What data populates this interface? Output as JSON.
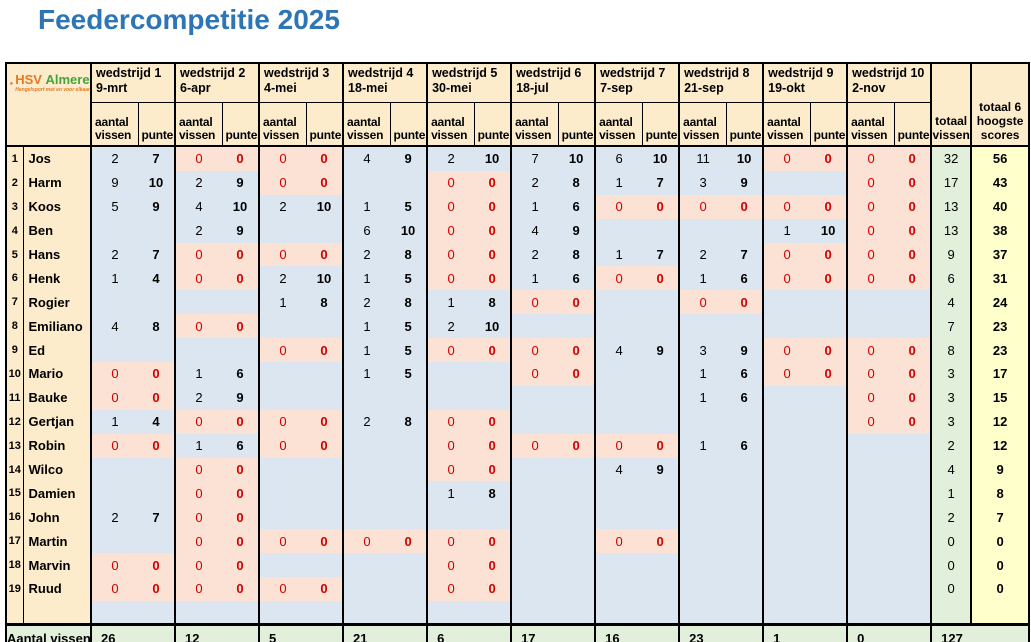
{
  "title": "Feedercompetitie 2025",
  "logo": {
    "icon": "fish-icon",
    "name_part1": "HSV",
    "name_part2": "Almere",
    "tagline": "Hengelsport met en voor elkaar"
  },
  "columns": {
    "sub_fish": "aantal vissen",
    "sub_points": "punten",
    "total_fish": "totaal vissen",
    "top6": "totaal 6 hoogste scores",
    "matches": [
      {
        "label": "wedstrijd 1",
        "date": "9-mrt"
      },
      {
        "label": "wedstrijd 2",
        "date": "6-apr"
      },
      {
        "label": "wedstrijd 3",
        "date": "4-mei"
      },
      {
        "label": "wedstrijd 4",
        "date": "18-mei"
      },
      {
        "label": "wedstrijd 5",
        "date": "30-mei"
      },
      {
        "label": "wedstrijd 6",
        "date": "18-jul"
      },
      {
        "label": "wedstrijd 7",
        "date": "7-sep"
      },
      {
        "label": "wedstrijd 8",
        "date": "21-sep"
      },
      {
        "label": "wedstrijd 9",
        "date": "19-okt"
      },
      {
        "label": "wedstrijd 10",
        "date": "2-nov"
      }
    ]
  },
  "players": [
    {
      "rank": 1,
      "name": "Jos",
      "results": [
        [
          2,
          7
        ],
        [
          0,
          0
        ],
        [
          0,
          0
        ],
        [
          4,
          9
        ],
        [
          2,
          10
        ],
        [
          7,
          10
        ],
        [
          6,
          10
        ],
        [
          11,
          10
        ],
        [
          0,
          0
        ],
        [
          0,
          0
        ]
      ],
      "total_fish": 32,
      "top6_score": 56
    },
    {
      "rank": 2,
      "name": "Harm",
      "results": [
        [
          9,
          10
        ],
        [
          2,
          9
        ],
        [
          0,
          0
        ],
        null,
        [
          0,
          0
        ],
        [
          2,
          8
        ],
        [
          1,
          7
        ],
        [
          3,
          9
        ],
        null,
        [
          0,
          0
        ]
      ],
      "total_fish": 17,
      "top6_score": 43
    },
    {
      "rank": 3,
      "name": "Koos",
      "results": [
        [
          5,
          9
        ],
        [
          4,
          10
        ],
        [
          2,
          10
        ],
        [
          1,
          5
        ],
        [
          0,
          0
        ],
        [
          1,
          6
        ],
        [
          0,
          0
        ],
        [
          0,
          0
        ],
        [
          0,
          0
        ],
        [
          0,
          0
        ]
      ],
      "total_fish": 13,
      "top6_score": 40
    },
    {
      "rank": 4,
      "name": "Ben",
      "results": [
        null,
        [
          2,
          9
        ],
        null,
        [
          6,
          10
        ],
        [
          0,
          0
        ],
        [
          4,
          9
        ],
        null,
        null,
        [
          1,
          10
        ],
        [
          0,
          0
        ]
      ],
      "total_fish": 13,
      "top6_score": 38
    },
    {
      "rank": 5,
      "name": "Hans",
      "results": [
        [
          2,
          7
        ],
        [
          0,
          0
        ],
        [
          0,
          0
        ],
        [
          2,
          8
        ],
        [
          0,
          0
        ],
        [
          2,
          8
        ],
        [
          1,
          7
        ],
        [
          2,
          7
        ],
        [
          0,
          0
        ],
        [
          0,
          0
        ]
      ],
      "total_fish": 9,
      "top6_score": 37
    },
    {
      "rank": 6,
      "name": "Henk",
      "results": [
        [
          1,
          4
        ],
        [
          0,
          0
        ],
        [
          2,
          10
        ],
        [
          1,
          5
        ],
        [
          0,
          0
        ],
        [
          1,
          6
        ],
        [
          0,
          0
        ],
        [
          1,
          6
        ],
        [
          0,
          0
        ],
        [
          0,
          0
        ]
      ],
      "total_fish": 6,
      "top6_score": 31
    },
    {
      "rank": 7,
      "name": "Rogier",
      "results": [
        null,
        null,
        [
          1,
          8
        ],
        [
          2,
          8
        ],
        [
          1,
          8
        ],
        [
          0,
          0
        ],
        null,
        [
          0,
          0
        ],
        null,
        null
      ],
      "total_fish": 4,
      "top6_score": 24
    },
    {
      "rank": 8,
      "name": "Emiliano",
      "results": [
        [
          4,
          8
        ],
        [
          0,
          0
        ],
        null,
        [
          1,
          5
        ],
        [
          2,
          10
        ],
        null,
        null,
        null,
        null,
        null
      ],
      "total_fish": 7,
      "top6_score": 23
    },
    {
      "rank": 9,
      "name": "Ed",
      "results": [
        null,
        null,
        [
          0,
          0
        ],
        [
          1,
          5
        ],
        [
          0,
          0
        ],
        [
          0,
          0
        ],
        [
          4,
          9
        ],
        [
          3,
          9
        ],
        [
          0,
          0
        ],
        [
          0,
          0
        ]
      ],
      "total_fish": 8,
      "top6_score": 23
    },
    {
      "rank": 10,
      "name": "Mario",
      "results": [
        [
          0,
          0
        ],
        [
          1,
          6
        ],
        null,
        [
          1,
          5
        ],
        null,
        [
          0,
          0
        ],
        null,
        [
          1,
          6
        ],
        [
          0,
          0
        ],
        [
          0,
          0
        ]
      ],
      "total_fish": 3,
      "top6_score": 17
    },
    {
      "rank": 11,
      "name": "Bauke",
      "results": [
        [
          0,
          0
        ],
        [
          2,
          9
        ],
        null,
        null,
        null,
        null,
        null,
        [
          1,
          6
        ],
        null,
        [
          0,
          0
        ]
      ],
      "total_fish": 3,
      "top6_score": 15
    },
    {
      "rank": 12,
      "name": "Gertjan",
      "results": [
        [
          1,
          4
        ],
        [
          0,
          0
        ],
        [
          0,
          0
        ],
        [
          2,
          8
        ],
        [
          0,
          0
        ],
        null,
        null,
        null,
        null,
        [
          0,
          0
        ]
      ],
      "total_fish": 3,
      "top6_score": 12
    },
    {
      "rank": 13,
      "name": "Robin",
      "results": [
        [
          0,
          0
        ],
        [
          1,
          6
        ],
        [
          0,
          0
        ],
        null,
        [
          0,
          0
        ],
        [
          0,
          0
        ],
        [
          0,
          0
        ],
        [
          1,
          6
        ],
        null,
        null
      ],
      "total_fish": 2,
      "top6_score": 12
    },
    {
      "rank": 14,
      "name": "Wilco",
      "results": [
        null,
        [
          0,
          0
        ],
        null,
        null,
        [
          0,
          0
        ],
        null,
        [
          4,
          9
        ],
        null,
        null,
        null
      ],
      "total_fish": 4,
      "top6_score": 9
    },
    {
      "rank": 15,
      "name": "Damien",
      "results": [
        null,
        [
          0,
          0
        ],
        null,
        null,
        [
          1,
          8
        ],
        null,
        null,
        null,
        null,
        null
      ],
      "total_fish": 1,
      "top6_score": 8
    },
    {
      "rank": 16,
      "name": "John",
      "results": [
        [
          2,
          7
        ],
        [
          0,
          0
        ],
        null,
        null,
        null,
        null,
        null,
        null,
        null,
        null
      ],
      "total_fish": 2,
      "top6_score": 7
    },
    {
      "rank": 17,
      "name": "Martin",
      "results": [
        null,
        [
          0,
          0
        ],
        [
          0,
          0
        ],
        [
          0,
          0
        ],
        [
          0,
          0
        ],
        null,
        [
          0,
          0
        ],
        null,
        null,
        null
      ],
      "total_fish": 0,
      "top6_score": 0
    },
    {
      "rank": 18,
      "name": "Marvin",
      "results": [
        [
          0,
          0
        ],
        [
          0,
          0
        ],
        null,
        null,
        [
          0,
          0
        ],
        null,
        null,
        null,
        null,
        null
      ],
      "total_fish": 0,
      "top6_score": 0
    },
    {
      "rank": 19,
      "name": "Ruud",
      "results": [
        [
          0,
          0
        ],
        [
          0,
          0
        ],
        [
          0,
          0
        ],
        null,
        [
          0,
          0
        ],
        null,
        null,
        null,
        null,
        null
      ],
      "total_fish": 0,
      "top6_score": 0
    }
  ],
  "footer": {
    "label": "Aantal vissen:",
    "per_match": [
      26,
      12,
      5,
      21,
      6,
      17,
      16,
      23,
      1,
      0
    ],
    "grand_total": 127
  },
  "colors": {
    "title_blue": "#2e75b6",
    "header_beige": "#fdeccb",
    "cell_blue": "#dce6f1",
    "cell_pink": "#fbe2d4",
    "cell_green": "#e2efda",
    "cell_yellow": "#ffffcc",
    "zero_red": "#d00000",
    "logo_orange": "#e87722",
    "logo_green": "#46a23e"
  }
}
